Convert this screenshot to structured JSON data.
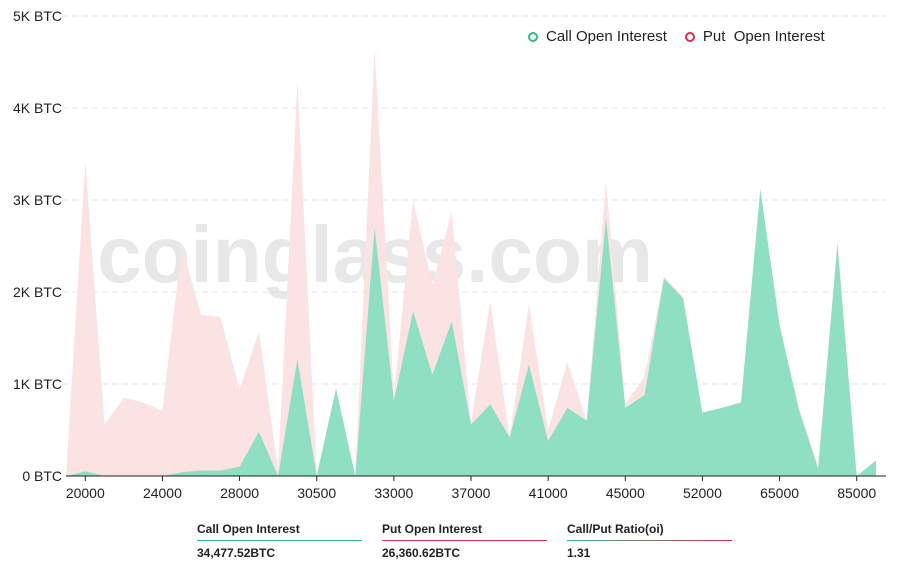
{
  "colors": {
    "call": "#8fdfc2",
    "put": "#fbe3e4",
    "call_legend": "#2ebd85",
    "put_legend": "#e0294a",
    "grid": "#e5e5e5",
    "axis": "#222222",
    "watermark": "#d6d6d6"
  },
  "watermark": "coinglass.com",
  "legend": {
    "call": "Call Open Interest",
    "put": "Put  Open Interest"
  },
  "stats": {
    "call_label": "Call Open Interest",
    "call_value": "34,477.52BTC",
    "put_label": "Put Open Interest",
    "put_value": "26,360.62BTC",
    "ratio_label": "Call/Put Ratio(oi)",
    "ratio_value": "1.31"
  },
  "chart_data": {
    "type": "area",
    "title": "",
    "xlabel": "",
    "ylabel": "",
    "ylim": [
      0,
      5000
    ],
    "y_ticks": [
      0,
      1000,
      2000,
      3000,
      4000,
      5000
    ],
    "y_tick_labels": [
      "0 BTC",
      "1K BTC",
      "2K BTC",
      "3K BTC",
      "4K BTC",
      "5K BTC"
    ],
    "grid": true,
    "legend_position": "top-right",
    "x_tick_labels": [
      "20000",
      "24000",
      "28000",
      "30500",
      "33000",
      "37000",
      "41000",
      "45000",
      "52000",
      "65000",
      "85000"
    ],
    "x_tick_index": [
      1,
      5,
      9,
      13,
      17,
      21,
      25,
      29,
      33,
      37,
      41
    ],
    "series": [
      {
        "name": "Call Open Interest",
        "values": [
          0,
          50,
          0,
          0,
          0,
          0,
          40,
          60,
          60,
          100,
          480,
          0,
          1270,
          0,
          950,
          0,
          2700,
          820,
          1790,
          1100,
          1680,
          560,
          780,
          420,
          1210,
          380,
          740,
          600,
          2800,
          740,
          880,
          2150,
          1930,
          690,
          740,
          800,
          3120,
          1640,
          720,
          80,
          2520,
          0,
          170
        ]
      },
      {
        "name": "Put  Open Interest",
        "values": [
          0,
          3420,
          560,
          850,
          800,
          710,
          2500,
          1750,
          1730,
          940,
          1570,
          60,
          4300,
          0,
          930,
          0,
          4650,
          870,
          3000,
          2080,
          2870,
          580,
          1900,
          420,
          1870,
          500,
          1240,
          600,
          3200,
          780,
          1080,
          2170,
          1950,
          650,
          720,
          750,
          2870,
          1620,
          740,
          100,
          2550,
          0,
          170
        ]
      }
    ]
  }
}
